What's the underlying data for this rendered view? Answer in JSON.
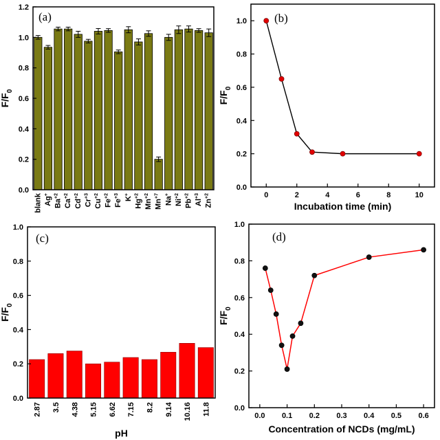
{
  "chart_data": [
    {
      "type": "bar",
      "panel_label": "(a)",
      "ylabel_main": "F/F",
      "ylabel_sub": "0",
      "ylim": [
        0,
        1.2
      ],
      "yticks": [
        "0.0",
        "0.2",
        "0.4",
        "0.6",
        "0.8",
        "1.0",
        "1.2"
      ],
      "categories": [
        {
          "base": "blank",
          "sup": ""
        },
        {
          "base": "Ag",
          "sup": "+"
        },
        {
          "base": "Ba",
          "sup": "+2"
        },
        {
          "base": "Ca",
          "sup": "+2"
        },
        {
          "base": "Cd",
          "sup": "+2"
        },
        {
          "base": "Cr",
          "sup": "+3"
        },
        {
          "base": "Cu",
          "sup": "+2"
        },
        {
          "base": "Fe",
          "sup": "+2"
        },
        {
          "base": "Fe",
          "sup": "+3"
        },
        {
          "base": "K",
          "sup": "+"
        },
        {
          "base": "Hg",
          "sup": "+2"
        },
        {
          "base": "Mn",
          "sup": "+2"
        },
        {
          "base": "Mn",
          "sup": "+7"
        },
        {
          "base": "Na",
          "sup": "+"
        },
        {
          "base": "Ni",
          "sup": "+2"
        },
        {
          "base": "Pb",
          "sup": "+2"
        },
        {
          "base": "Al",
          "sup": "+3"
        },
        {
          "base": "Zn",
          "sup": "+2"
        }
      ],
      "values": [
        1.0,
        0.935,
        1.055,
        1.055,
        1.02,
        0.975,
        1.04,
        1.045,
        0.905,
        1.05,
        0.97,
        1.025,
        0.2,
        1.0,
        1.05,
        1.055,
        1.045,
        1.03
      ],
      "errors": [
        0.012,
        0.012,
        0.012,
        0.012,
        0.02,
        0.012,
        0.018,
        0.012,
        0.012,
        0.02,
        0.02,
        0.018,
        0.015,
        0.02,
        0.025,
        0.02,
        0.012,
        0.025
      ],
      "color": "#7a7a14"
    },
    {
      "type": "line",
      "panel_label": "(b)",
      "xlabel": "Incubation time (min)",
      "ylabel_main": "F/F",
      "ylabel_sub": "0",
      "xlim": [
        -1,
        11
      ],
      "ylim": [
        0,
        1.1
      ],
      "xticks": [
        "0",
        "2",
        "4",
        "6",
        "8",
        "10"
      ],
      "yticks": [
        "0.0",
        "0.2",
        "0.4",
        "0.6",
        "0.8",
        "1.0"
      ],
      "x": [
        0,
        1,
        2,
        3,
        5,
        10
      ],
      "y": [
        1.0,
        0.65,
        0.32,
        0.21,
        0.2,
        0.2
      ],
      "marker_color": "#e00000",
      "line_color": "#000000"
    },
    {
      "type": "bar",
      "panel_label": "(c)",
      "xlabel": "pH",
      "ylabel_main": "F/F",
      "ylabel_sub": "0",
      "ylim": [
        0,
        1.0
      ],
      "yticks": [
        "0.0",
        "0.2",
        "0.4",
        "0.6",
        "0.8",
        "1.0"
      ],
      "categories": [
        "2.87",
        "3.5",
        "4.38",
        "5.15",
        "6.62",
        "7.15",
        "8.2",
        "9.14",
        "10.16",
        "11.8"
      ],
      "values": [
        0.225,
        0.26,
        0.275,
        0.2,
        0.21,
        0.237,
        0.225,
        0.268,
        0.32,
        0.295
      ],
      "color": "#ff0000"
    },
    {
      "type": "line",
      "panel_label": "(d)",
      "xlabel": "Concentration of NCDs (mg/mL)",
      "ylabel_main": "F/F",
      "ylabel_sub": "0",
      "xlim": [
        -0.04,
        0.64
      ],
      "ylim": [
        0,
        1.0
      ],
      "xticks": [
        "0.0",
        "0.1",
        "0.2",
        "0.3",
        "0.4",
        "0.5",
        "0.6"
      ],
      "yticks": [
        "0.0",
        "0.2",
        "0.4",
        "0.6",
        "0.8",
        "1.0"
      ],
      "x": [
        0.02,
        0.04,
        0.06,
        0.08,
        0.1,
        0.12,
        0.15,
        0.2,
        0.4,
        0.6
      ],
      "y": [
        0.76,
        0.64,
        0.51,
        0.34,
        0.21,
        0.39,
        0.46,
        0.72,
        0.82,
        0.86
      ],
      "marker_color": "#111111",
      "line_color": "#ff0000"
    }
  ]
}
